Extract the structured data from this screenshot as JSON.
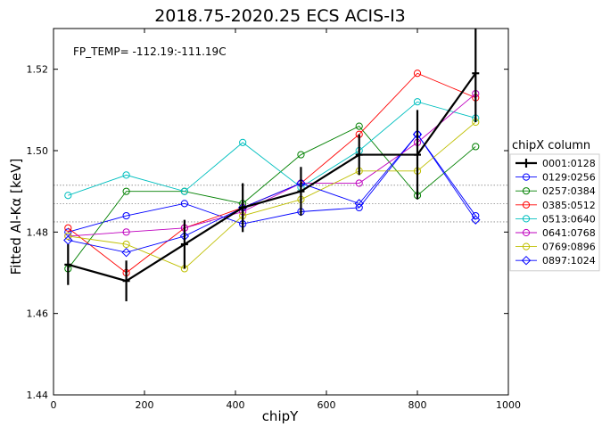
{
  "chart_data": {
    "type": "line",
    "title": "2018.75-2020.25   ECS   ACIS-I3",
    "annotation": "FP_TEMP= -112.19:-111.19C",
    "xlabel": "chipY",
    "ylabel": "Fitted Al-Kα [keV]",
    "xlim": [
      0,
      1000
    ],
    "ylim": [
      1.44,
      1.53
    ],
    "xticks": [
      0,
      200,
      400,
      600,
      800,
      1000
    ],
    "yticks": [
      1.44,
      1.46,
      1.48,
      1.5,
      1.52
    ],
    "xtick_labels": [
      "0",
      "200",
      "400",
      "600",
      "800",
      "1000"
    ],
    "ytick_labels": [
      "1.44",
      "1.46",
      "1.48",
      "1.50",
      "1.52"
    ],
    "reference_lines": [
      1.4915,
      1.487,
      1.4825
    ],
    "x": [
      32,
      160,
      288,
      416,
      544,
      672,
      800,
      928
    ],
    "legend_title": "chipX column",
    "legend_position": "right",
    "series": [
      {
        "name": "0001:0128",
        "color": "#000000",
        "marker": "errorbar",
        "values": [
          1.472,
          1.468,
          1.477,
          1.486,
          1.49,
          1.499,
          1.499,
          1.519
        ],
        "errors": [
          0.005,
          0.005,
          0.006,
          0.006,
          0.006,
          0.005,
          0.011,
          0.012
        ]
      },
      {
        "name": "0129:0256",
        "color": "#0000ff",
        "marker": "circle",
        "values": [
          1.48,
          1.484,
          1.487,
          1.482,
          1.485,
          1.486,
          1.504,
          1.484
        ]
      },
      {
        "name": "0257:0384",
        "color": "#008000",
        "marker": "circle",
        "values": [
          1.471,
          1.49,
          1.49,
          1.487,
          1.499,
          1.506,
          1.489,
          1.501
        ]
      },
      {
        "name": "0385:0512",
        "color": "#ff0000",
        "marker": "circle",
        "values": [
          1.481,
          1.47,
          1.481,
          1.486,
          1.492,
          1.504,
          1.519,
          1.513
        ]
      },
      {
        "name": "0513:0640",
        "color": "#00bfbf",
        "marker": "circle",
        "values": [
          1.489,
          1.494,
          1.49,
          1.502,
          1.491,
          1.5,
          1.512,
          1.508
        ]
      },
      {
        "name": "0641:0768",
        "color": "#bf00bf",
        "marker": "circle",
        "values": [
          1.479,
          1.48,
          1.481,
          1.485,
          1.492,
          1.492,
          1.502,
          1.514
        ]
      },
      {
        "name": "0769:0896",
        "color": "#bfbf00",
        "marker": "circle",
        "values": [
          1.479,
          1.477,
          1.471,
          1.484,
          1.488,
          1.495,
          1.495,
          1.507
        ]
      },
      {
        "name": "0897:1024",
        "color": "#0000ff",
        "marker": "diamond",
        "values": [
          1.478,
          1.475,
          1.479,
          1.486,
          1.492,
          1.487,
          1.504,
          1.483
        ]
      }
    ]
  }
}
